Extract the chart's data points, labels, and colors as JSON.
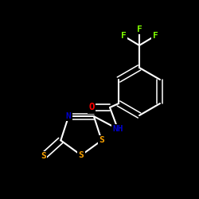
{
  "background_color": "#000000",
  "bond_color": "#ffffff",
  "atom_colors": {
    "O": "#ff0000",
    "N": "#0000cd",
    "S": "#ffa500",
    "F": "#7fff00",
    "C": "#ffffff",
    "H": "#ffffff"
  },
  "figsize": [
    2.5,
    2.5
  ],
  "dpi": 100,
  "xlim": [
    0,
    250
  ],
  "ylim": [
    0,
    250
  ]
}
